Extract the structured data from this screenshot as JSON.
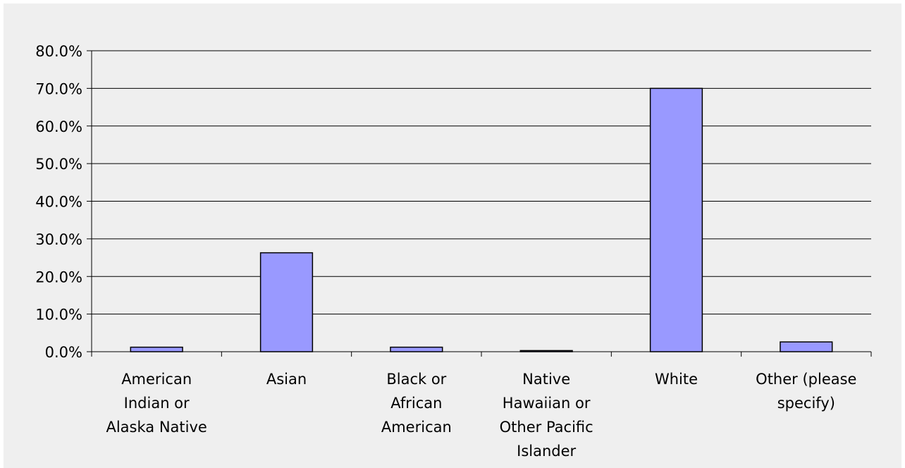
{
  "chart_data": {
    "type": "bar",
    "categories": [
      [
        "American",
        "Indian or",
        "Alaska Native"
      ],
      [
        "Asian"
      ],
      [
        "Black or",
        "African",
        "American"
      ],
      [
        "Native",
        "Hawaiian or",
        "Other Pacific",
        "Islander"
      ],
      [
        "White"
      ],
      [
        "Other (please",
        "specify)"
      ]
    ],
    "values": [
      1.2,
      26.3,
      1.2,
      0.3,
      70.0,
      2.6
    ],
    "ylim": [
      0,
      80
    ],
    "yticks": [
      "0.0%",
      "10.0%",
      "20.0%",
      "30.0%",
      "40.0%",
      "50.0%",
      "60.0%",
      "70.0%",
      "80.0%"
    ],
    "ytick_values": [
      0,
      10,
      20,
      30,
      40,
      50,
      60,
      70,
      80
    ],
    "grid": true,
    "legend": "none",
    "colors": {
      "bar_fill": "#9999ff",
      "bar_stroke": "#000000",
      "background": "#efefef",
      "gridline": "#000000"
    }
  }
}
